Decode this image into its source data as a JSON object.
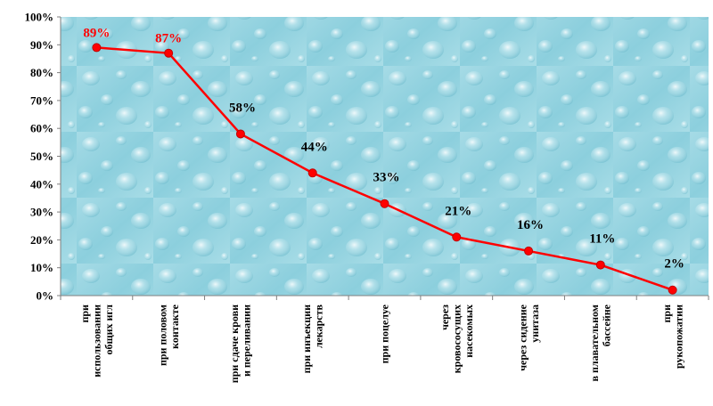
{
  "chart_data": {
    "type": "line",
    "title": "",
    "xlabel": "",
    "ylabel": "",
    "ylim": [
      0,
      100
    ],
    "yticks": [
      "0%",
      "10%",
      "20%",
      "30%",
      "40%",
      "50%",
      "60%",
      "70%",
      "80%",
      "90%",
      "100%"
    ],
    "categories": [
      [
        "при",
        "использовании",
        "общих игл"
      ],
      [
        "при половом",
        "контакте"
      ],
      [
        "при сдаче крови",
        "и переливании"
      ],
      [
        "при инъекции",
        "лекарств"
      ],
      [
        "при поцелуе"
      ],
      [
        "через",
        "кровососущих",
        "насекомых"
      ],
      [
        "через сидение",
        "унитаза"
      ],
      [
        "в плавательном",
        "бассейне"
      ],
      [
        "при",
        "рукопожатии"
      ]
    ],
    "series": [
      {
        "values": [
          89,
          87,
          58,
          44,
          33,
          21,
          16,
          11,
          2
        ],
        "labels": [
          "89%",
          "87%",
          "58%",
          "44%",
          "33%",
          "21%",
          "16%",
          "11%",
          "2%"
        ]
      }
    ],
    "line_color": "#ff0000",
    "highlight_label_color": "#ff0000",
    "label_color": "#000000",
    "plot_background": "#9dd6e2",
    "grid": false,
    "legend": "none"
  }
}
